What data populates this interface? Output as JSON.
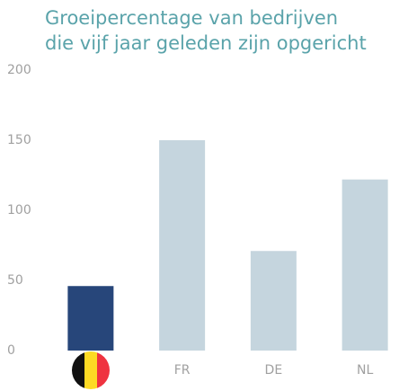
{
  "chart_data": {
    "type": "bar",
    "title": "Groeipercentage van bedrijven die vijf jaar geleden zijn opgericht",
    "categories": [
      null,
      "FR",
      "DE",
      "NL"
    ],
    "values": [
      46,
      150,
      71,
      122
    ],
    "colors": [
      "#27467a",
      "#c5d5de",
      "#c5d5de",
      "#c5d5de"
    ],
    "ylim": [
      0,
      200
    ],
    "yticks": [
      0,
      50,
      100,
      150,
      200
    ],
    "grid": false
  }
}
